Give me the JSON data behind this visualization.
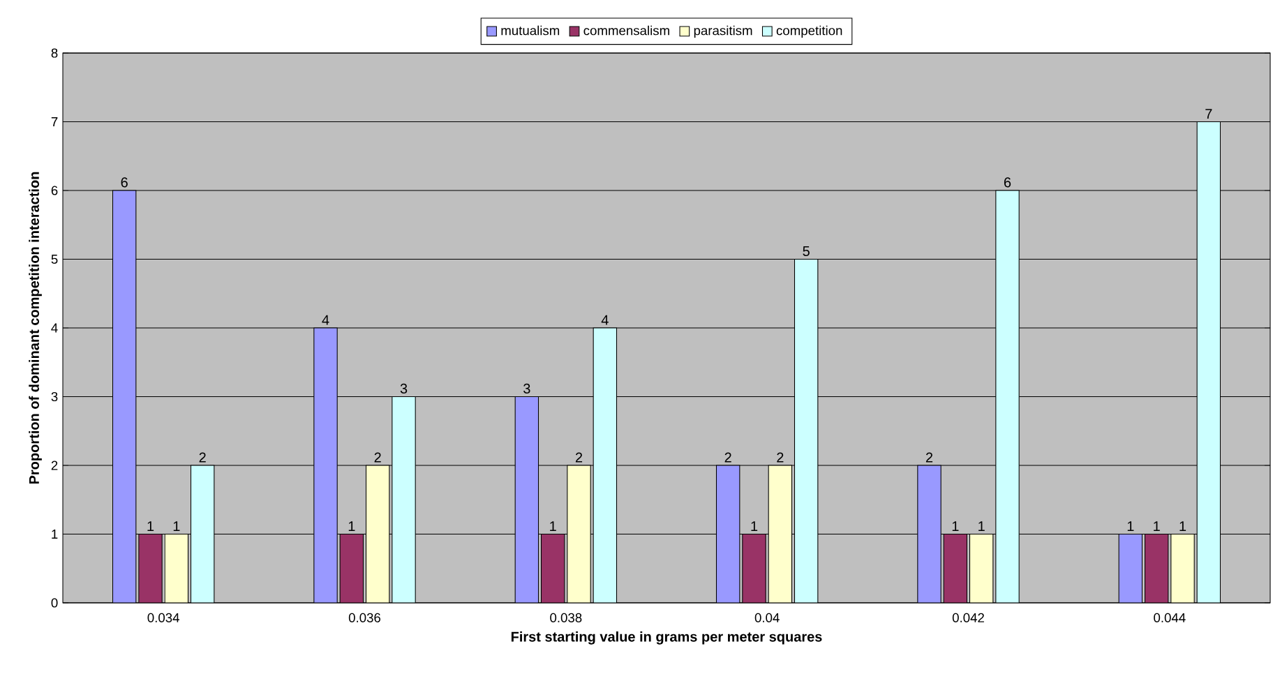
{
  "chart_data": {
    "type": "bar",
    "xlabel": "First starting value in grams per meter squares",
    "ylabel": "Proportion of dominant competition interaction",
    "categories": [
      "0.034",
      "0.036",
      "0.038",
      "0.04",
      "0.042",
      "0.044"
    ],
    "series": [
      {
        "name": "mutualism",
        "color": "#9999ff",
        "values": [
          6,
          4,
          3,
          2,
          2,
          1
        ]
      },
      {
        "name": "commensalism",
        "color": "#993366",
        "values": [
          1,
          1,
          1,
          1,
          1,
          1
        ]
      },
      {
        "name": "parasitism",
        "color": "#ffffcc",
        "values": [
          1,
          2,
          2,
          2,
          1,
          1
        ]
      },
      {
        "name": "competition",
        "color": "#ccffff",
        "values": [
          2,
          3,
          4,
          5,
          6,
          7
        ]
      }
    ],
    "ylim": [
      0,
      8
    ],
    "yticks": [
      0,
      1,
      2,
      3,
      4,
      5,
      6,
      7,
      8
    ],
    "grid": "y",
    "legend": "top",
    "data_labels": true
  }
}
